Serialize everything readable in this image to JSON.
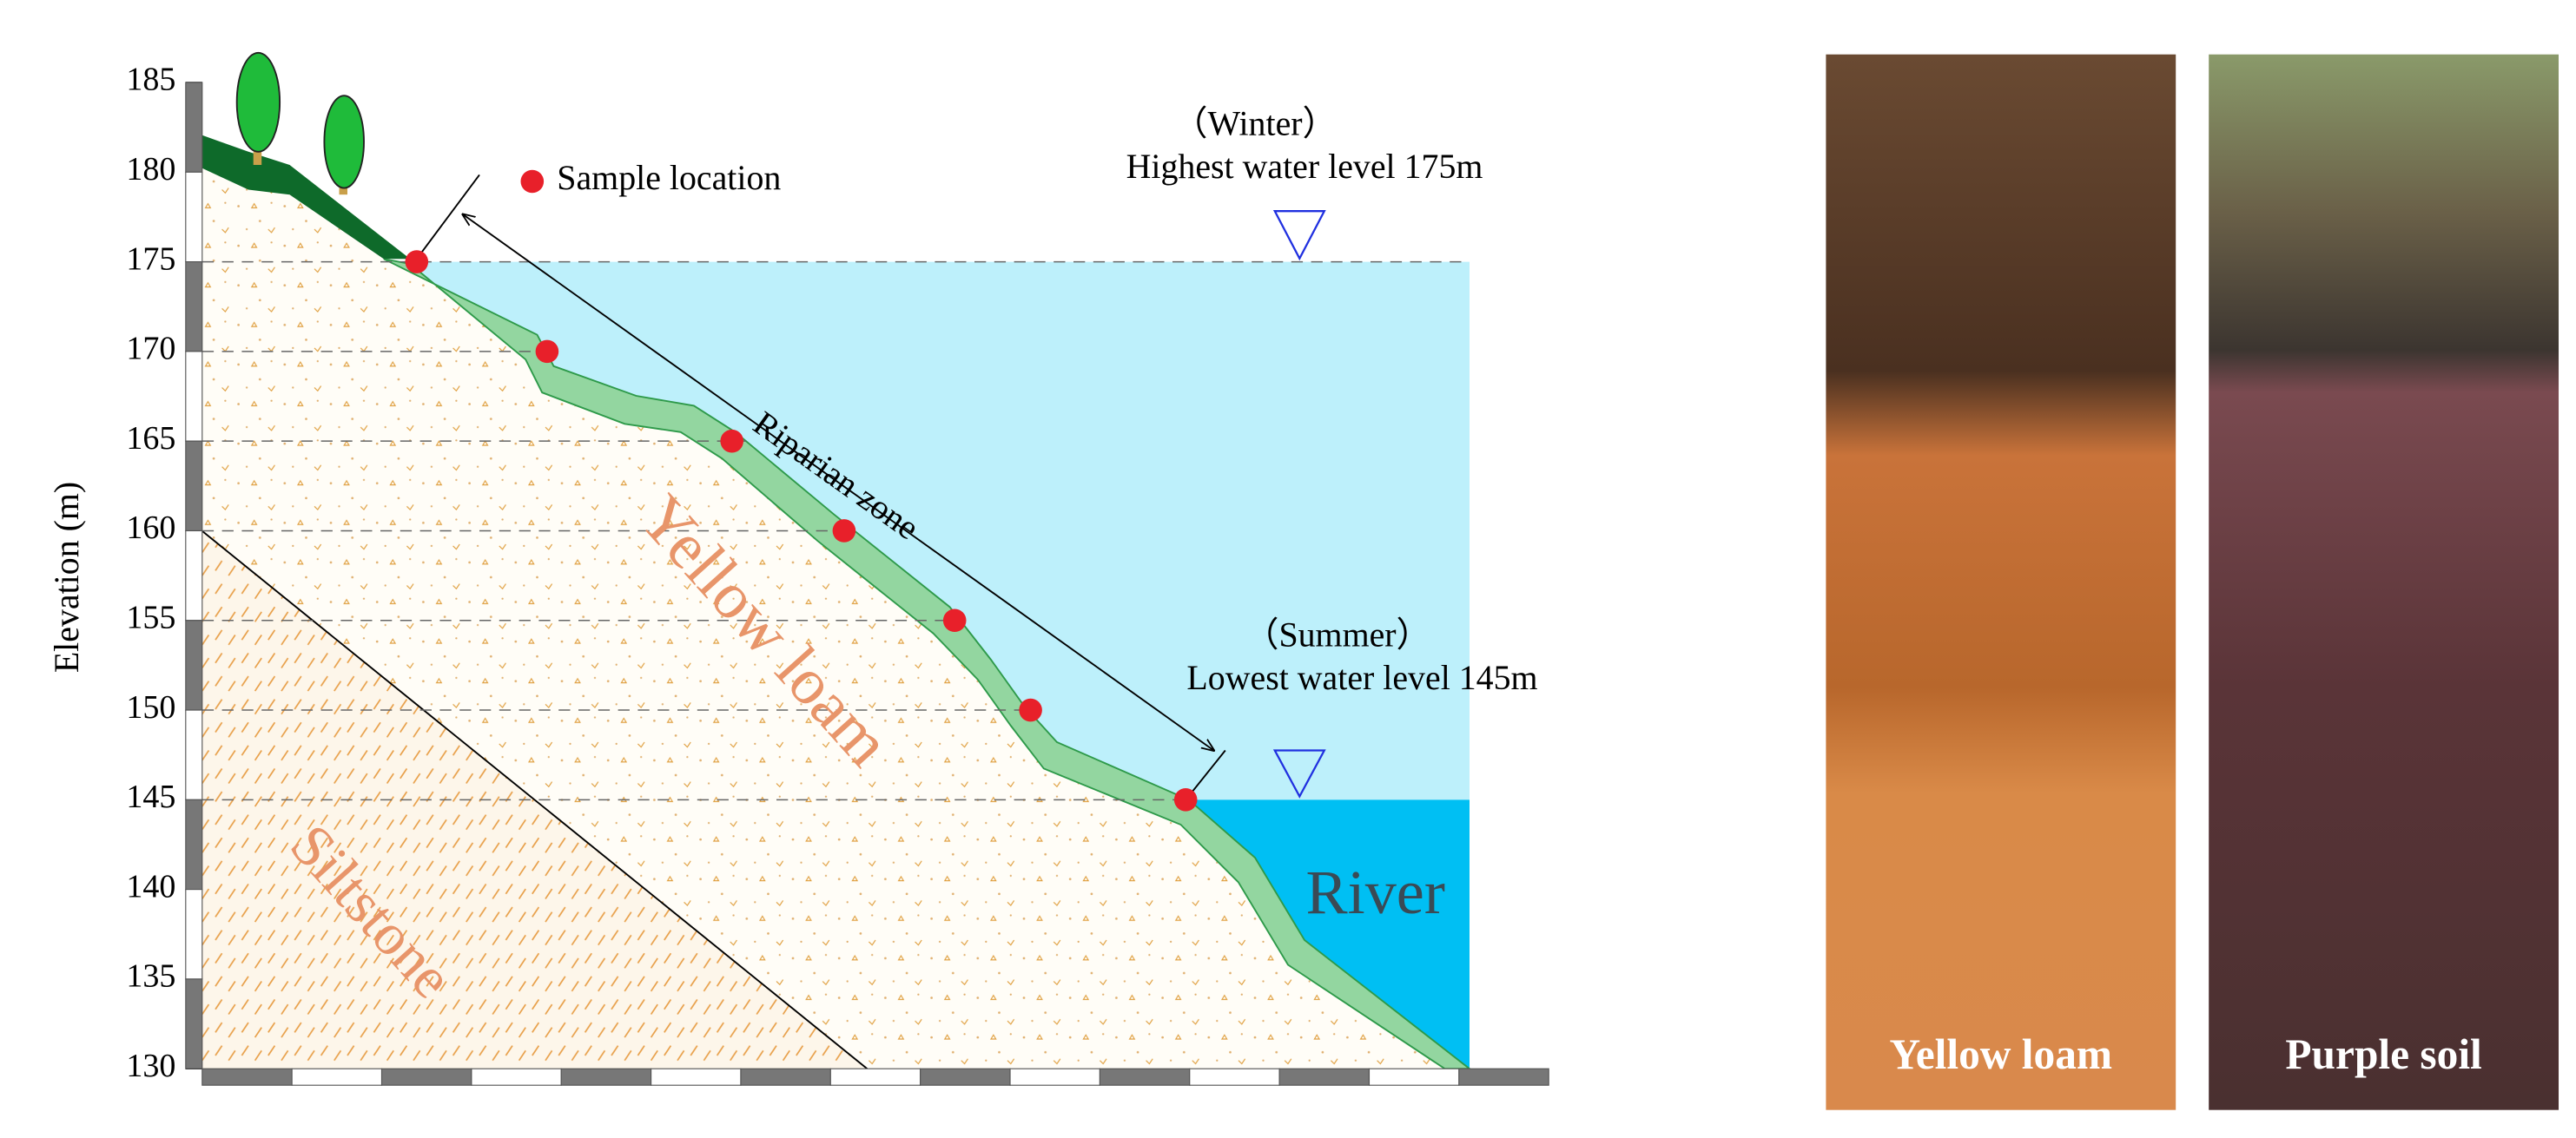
{
  "axis": {
    "label": "Elevation (m)",
    "ylim": [
      130,
      185
    ],
    "yticks": [
      130,
      135,
      140,
      145,
      150,
      155,
      160,
      165,
      170,
      175,
      180,
      185
    ]
  },
  "legend": {
    "label": "Sample location"
  },
  "annotations": {
    "winter_season": "（Winter）",
    "winter_level": "Highest water level 175m",
    "summer_season": "（Summer）",
    "summer_level": "Lowest water level 145m",
    "riparian": "Riparian zone",
    "yellow_loam": "Yellow loam",
    "siltstone": "Siltstone",
    "river": "River"
  },
  "water_levels": {
    "highest": 175,
    "lowest": 145
  },
  "samples": [
    175,
    170,
    165,
    160,
    155,
    150,
    145
  ],
  "photos": [
    {
      "label": "Yellow loam"
    },
    {
      "label": "Purple soil"
    }
  ]
}
